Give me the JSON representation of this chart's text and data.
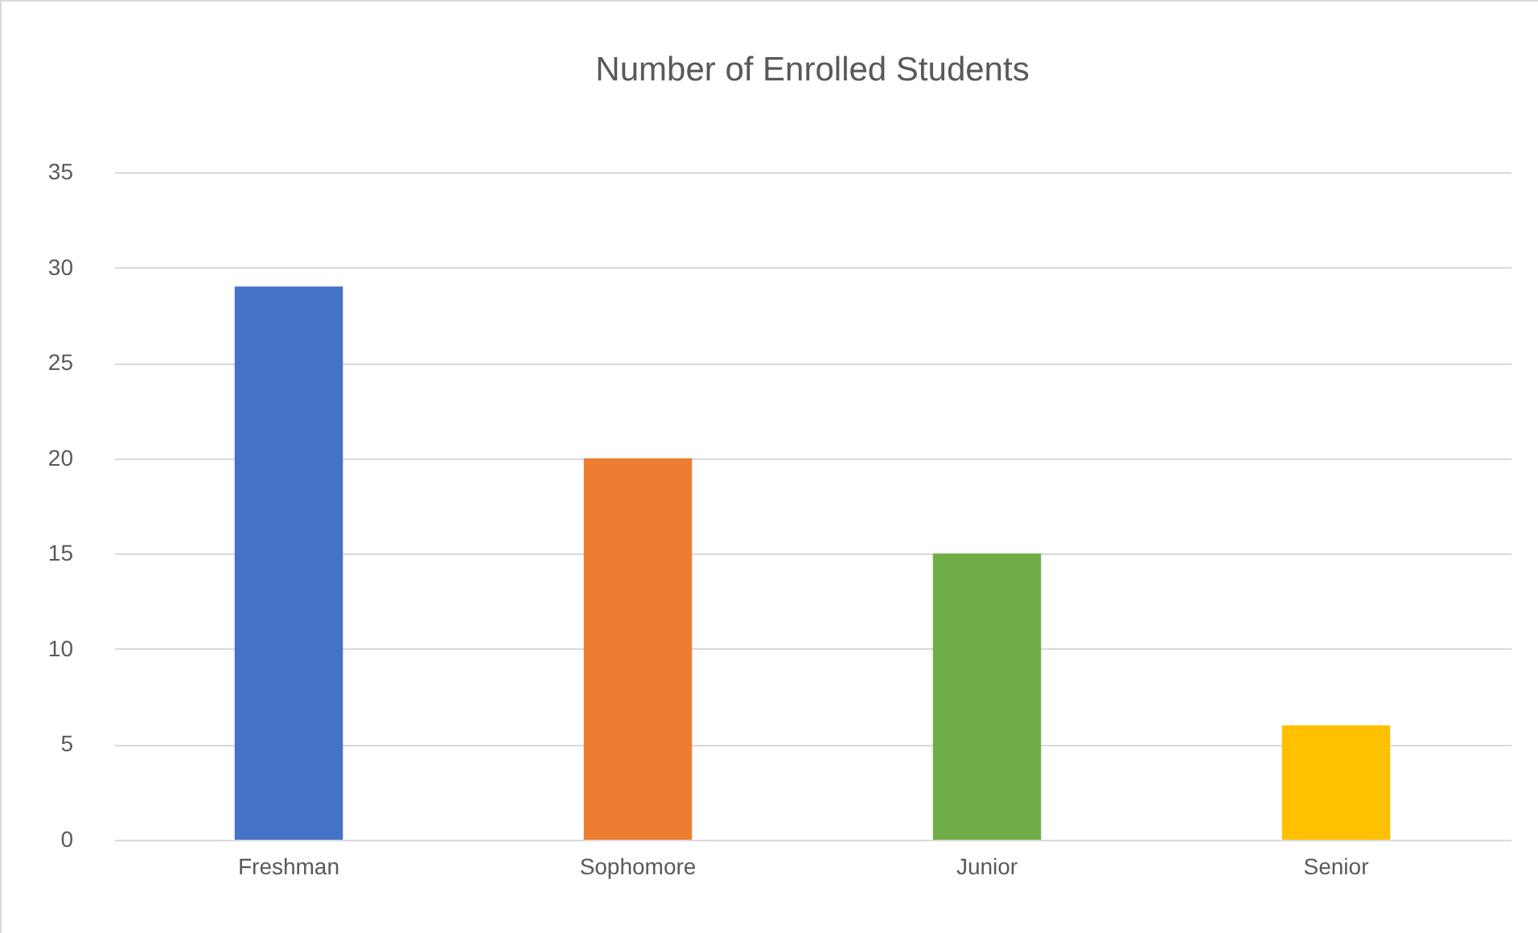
{
  "chart_data": {
    "type": "bar",
    "title": "Number of Enrolled Students",
    "categories": [
      "Freshman",
      "Sophomore",
      "Junior",
      "Senior"
    ],
    "values": [
      29,
      20,
      15,
      6
    ],
    "colors": [
      "#4472c4",
      "#ed7d31",
      "#70ad47",
      "#ffc000"
    ],
    "ylim": [
      0,
      35
    ],
    "yticks": [
      0,
      5,
      10,
      15,
      20,
      25,
      30,
      35
    ],
    "grid": "y"
  }
}
